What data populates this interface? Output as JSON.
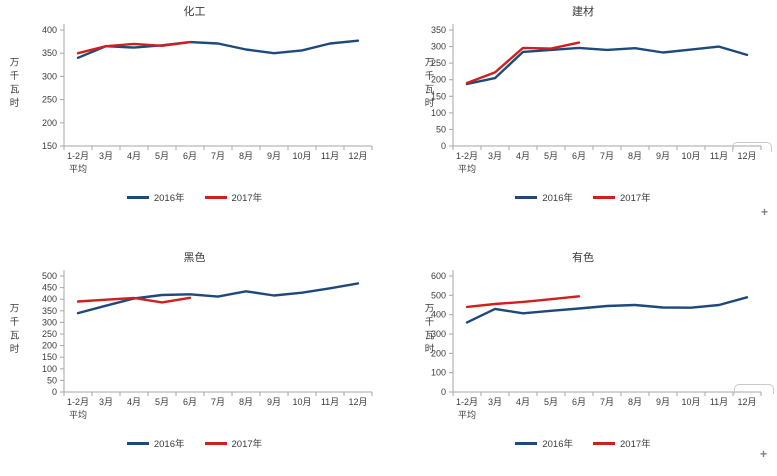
{
  "window": {
    "background": "#ffffff"
  },
  "colors": {
    "series_2016": "#1F497D",
    "series_2017": "#D01F1F",
    "axis_line": "#A6A6A6",
    "tick_text": "#3B3B3B"
  },
  "artifacts": {
    "cursor_plus": "+"
  },
  "chart_data": [
    {
      "type": "line",
      "title": "化工",
      "ylabel": "万千瓦时",
      "ylim": [
        150,
        400
      ],
      "ystep": 50,
      "grid": false,
      "legend_position": "bottom",
      "categories": [
        "1-2月\n平均",
        "3月",
        "4月",
        "5月",
        "6月",
        "7月",
        "8月",
        "9月",
        "10月",
        "11月",
        "12月"
      ],
      "series": [
        {
          "name": "2016年",
          "color": "#1F497D",
          "values": [
            340,
            365,
            362,
            367,
            374,
            371,
            358,
            350,
            356,
            371,
            377
          ]
        },
        {
          "name": "2017年",
          "color": "#D01F1F",
          "values": [
            350,
            365,
            370,
            366,
            374
          ]
        }
      ]
    },
    {
      "type": "line",
      "title": "建材",
      "ylabel": "万千瓦时",
      "ylim": [
        0,
        350
      ],
      "ystep": 50,
      "grid": false,
      "legend_position": "bottom",
      "categories": [
        "1-2月\n平均",
        "3月",
        "4月",
        "5月",
        "6月",
        "7月",
        "8月",
        "9月",
        "10月",
        "11月",
        "12月"
      ],
      "series": [
        {
          "name": "2016年",
          "color": "#1F497D",
          "values": [
            187,
            205,
            284,
            290,
            296,
            290,
            295,
            282,
            291,
            300,
            275
          ]
        },
        {
          "name": "2017年",
          "color": "#D01F1F",
          "values": [
            190,
            222,
            296,
            294,
            312
          ]
        }
      ]
    },
    {
      "type": "line",
      "title": "黑色",
      "ylabel": "万千瓦时",
      "ylim": [
        0,
        500
      ],
      "ystep": 50,
      "grid": false,
      "legend_position": "bottom",
      "categories": [
        "1-2月\n平均",
        "3月",
        "4月",
        "5月",
        "6月",
        "7月",
        "8月",
        "9月",
        "10月",
        "11月",
        "12月"
      ],
      "series": [
        {
          "name": "2016年",
          "color": "#1F497D",
          "values": [
            340,
            372,
            403,
            418,
            421,
            411,
            434,
            416,
            428,
            447,
            468
          ]
        },
        {
          "name": "2017年",
          "color": "#D01F1F",
          "values": [
            390,
            398,
            405,
            386,
            406
          ]
        }
      ]
    },
    {
      "type": "line",
      "title": "有色",
      "ylabel": "万千瓦时",
      "ylim": [
        0,
        600
      ],
      "ystep": 100,
      "grid": false,
      "legend_position": "bottom",
      "categories": [
        "1-2月\n平均",
        "3月",
        "4月",
        "5月",
        "6月",
        "7月",
        "8月",
        "9月",
        "10月",
        "11月",
        "12月"
      ],
      "series": [
        {
          "name": "2016年",
          "color": "#1F497D",
          "values": [
            360,
            430,
            407,
            420,
            432,
            445,
            450,
            437,
            436,
            450,
            490
          ]
        },
        {
          "name": "2017年",
          "color": "#D01F1F",
          "values": [
            440,
            455,
            466,
            480,
            495
          ]
        }
      ]
    }
  ]
}
